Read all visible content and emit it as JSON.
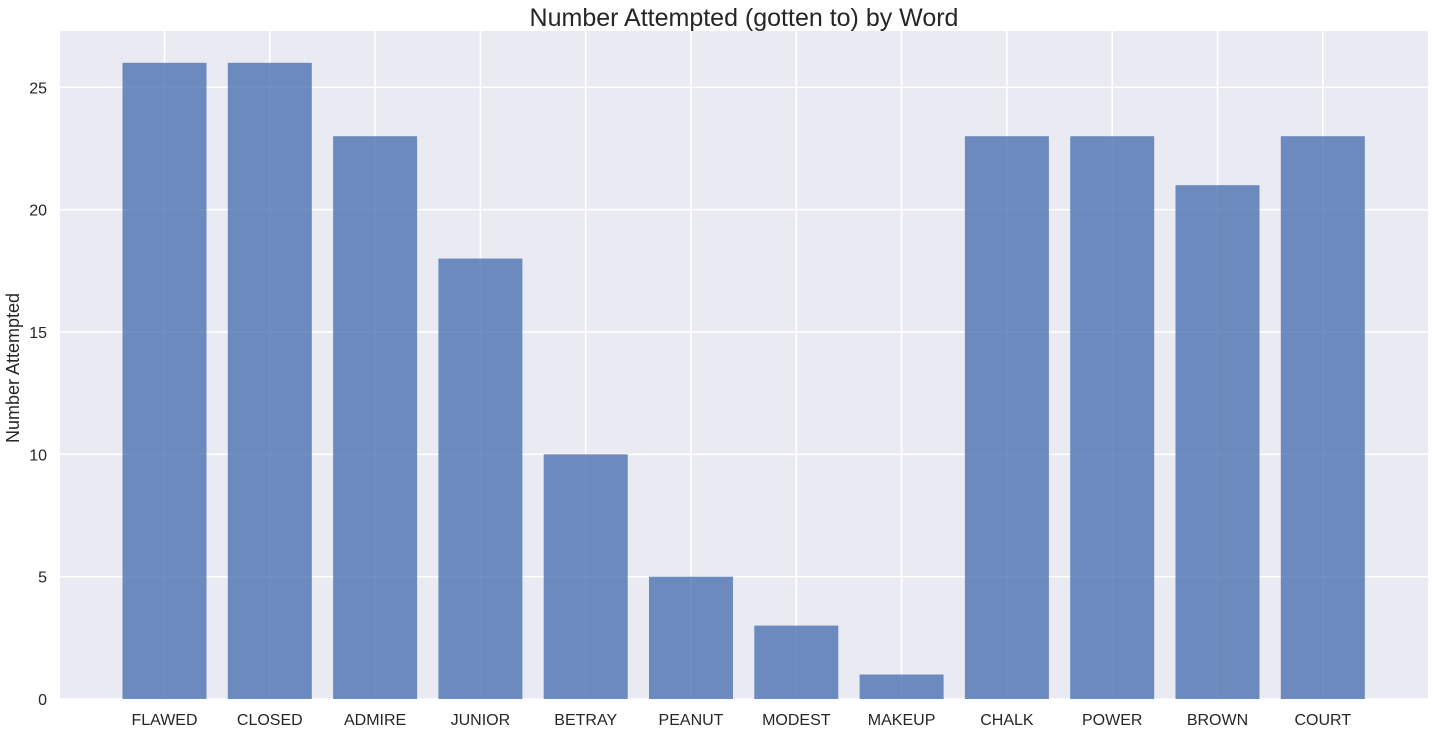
{
  "chart_data": {
    "type": "bar",
    "title": "Number Attempted (gotten to) by Word",
    "xlabel": "",
    "ylabel": "Number Attempted",
    "categories": [
      "FLAWED",
      "CLOSED",
      "ADMIRE",
      "JUNIOR",
      "BETRAY",
      "PEANUT",
      "MODEST",
      "MAKEUP",
      "CHALK",
      "POWER",
      "BROWN",
      "COURT"
    ],
    "values": [
      26,
      26,
      23,
      18,
      10,
      5,
      3,
      1,
      23,
      23,
      21,
      23
    ],
    "ylim": [
      0,
      27.3
    ],
    "yticks": [
      0,
      5,
      10,
      15,
      20,
      25
    ],
    "grid": true,
    "colors": {
      "bar": "#4c72b0",
      "background": "#eaeaf2",
      "grid": "#ffffff"
    }
  }
}
